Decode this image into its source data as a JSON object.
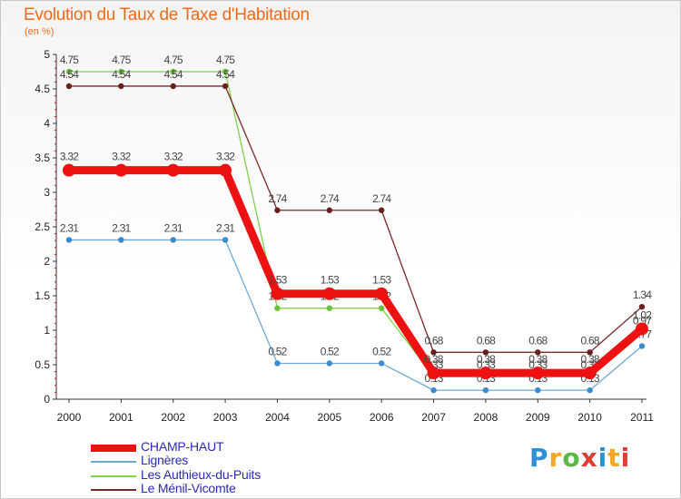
{
  "title": "Evolution du Taux de Taxe d'Habitation",
  "subtitle": "(en %)",
  "logo": {
    "text": "Proxiti"
  },
  "chart_data": {
    "type": "line",
    "title": "Evolution du Taux de Taxe d'Habitation",
    "ylabel": "(en %)",
    "xlabel": "",
    "ylim": [
      0,
      5
    ],
    "grid": false,
    "x": [
      "2000",
      "2001",
      "2002",
      "2003",
      "2004",
      "2005",
      "2006",
      "2007",
      "2008",
      "2009",
      "2010",
      "2011"
    ],
    "y_ticks": [
      "0",
      "0.5",
      "1",
      "1.5",
      "2",
      "2.5",
      "3",
      "3.5",
      "4",
      "4.5",
      "5"
    ],
    "y_tick_values": [
      0,
      0.5,
      1,
      1.5,
      2,
      2.5,
      3,
      3.5,
      4,
      4.5,
      5
    ],
    "series": [
      {
        "name": "Les Authieux-du-Puits",
        "color": "#7fd34a",
        "marker": "#6cc03a",
        "values": [
          4.75,
          4.75,
          4.75,
          4.75,
          1.32,
          1.32,
          1.32,
          0.33,
          0.33,
          0.33,
          0.33,
          0.97
        ],
        "labels": [
          "4.75",
          "4.75",
          "4.75",
          "4.75",
          "1.32",
          "1.32",
          "1.32",
          "0.33",
          "0.33",
          "0.33",
          "0.33",
          "0.97"
        ]
      },
      {
        "name": "Le Ménil-Vicomte",
        "color": "#7a2a2a",
        "marker": "#6a1f1f",
        "values": [
          4.54,
          4.54,
          4.54,
          4.54,
          2.74,
          2.74,
          2.74,
          0.68,
          0.68,
          0.68,
          0.68,
          1.34
        ],
        "labels": [
          "4.54",
          "4.54",
          "4.54",
          "4.54",
          "2.74",
          "2.74",
          "2.74",
          "0.68",
          "0.68",
          "0.68",
          "0.68",
          "1.34"
        ]
      },
      {
        "name": "Lignères",
        "color": "#6fa8d6",
        "marker": "#3b8bcf",
        "values": [
          2.31,
          2.31,
          2.31,
          2.31,
          0.52,
          0.52,
          0.52,
          0.13,
          0.13,
          0.13,
          0.13,
          0.77
        ],
        "labels": [
          "2.31",
          "2.31",
          "2.31",
          "2.31",
          "0.52",
          "0.52",
          "0.52",
          "0.13",
          "0.13",
          "0.13",
          "0.13",
          "0.77"
        ]
      },
      {
        "name": "CHAMP-HAUT",
        "color": "#ee1111",
        "marker": "#ee1111",
        "emphasis": true,
        "values": [
          3.32,
          3.32,
          3.32,
          3.32,
          1.53,
          1.53,
          1.53,
          0.38,
          0.38,
          0.38,
          0.38,
          1.02
        ],
        "labels": [
          "3.32",
          "3.32",
          "3.32",
          "3.32",
          "1.53",
          "1.53",
          "1.53",
          "0.38",
          "0.38",
          "0.38",
          "0.38",
          "1.02"
        ]
      }
    ],
    "legend": [
      "CHAMP-HAUT",
      "Lignères",
      "Les Authieux-du-Puits",
      "Le Ménil-Vicomte"
    ],
    "legend_placement": "bottom-left"
  }
}
